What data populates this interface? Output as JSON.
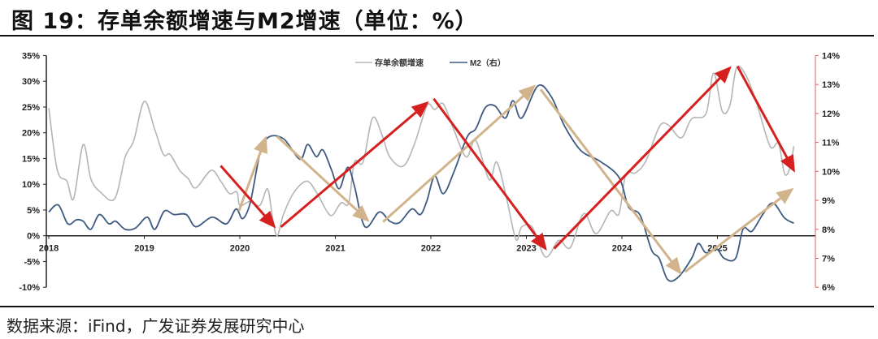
{
  "title": "图 19：存单余额增速与M2增速（单位：%）",
  "footer": "数据来源：iFind，广发证券发展研究中心",
  "colors": {
    "deposit": "#b5b5b5",
    "m2": "#3d5a80",
    "red_arrow": "#d62020",
    "tan_arrow": "#d2b48c",
    "right_axis": "#e06060"
  },
  "chart_data": {
    "type": "line",
    "title": "存单余额增速与M2增速（单位：%）",
    "legend_position": "top-center",
    "x_ticks": [
      "2018",
      "2019",
      "2020",
      "2021",
      "2022",
      "2023",
      "2024",
      "2025"
    ],
    "y_left": {
      "ticks": [
        "35%",
        "30%",
        "25%",
        "20%",
        "15%",
        "10%",
        "5%",
        "0%",
        "-5%",
        "-10%"
      ],
      "range": [
        -10,
        35
      ]
    },
    "y_right": {
      "ticks": [
        "14%",
        "13%",
        "12%",
        "11%",
        "10%",
        "9%",
        "8%",
        "7%",
        "6%"
      ],
      "range": [
        6,
        14
      ]
    },
    "series": [
      {
        "name": "存单余额增速",
        "axis": "left",
        "points": [
          [
            2018.0,
            24.8
          ],
          [
            2018.09,
            12.7
          ],
          [
            2018.19,
            10.6
          ],
          [
            2018.26,
            7.2
          ],
          [
            2018.36,
            17.7
          ],
          [
            2018.44,
            11.1
          ],
          [
            2018.54,
            8.5
          ],
          [
            2018.69,
            7.2
          ],
          [
            2018.8,
            15.3
          ],
          [
            2018.89,
            18.5
          ],
          [
            2019.0,
            26.1
          ],
          [
            2019.11,
            20.6
          ],
          [
            2019.2,
            15.8
          ],
          [
            2019.27,
            15.8
          ],
          [
            2019.37,
            12.7
          ],
          [
            2019.46,
            11.1
          ],
          [
            2019.54,
            9.3
          ],
          [
            2019.7,
            12.7
          ],
          [
            2019.8,
            10.6
          ],
          [
            2019.89,
            8.2
          ],
          [
            2019.97,
            8.5
          ],
          [
            2020.0,
            5.9
          ],
          [
            2020.11,
            6.7
          ],
          [
            2020.21,
            5.9
          ],
          [
            2020.29,
            9.1
          ],
          [
            2020.34,
            3.8
          ],
          [
            2020.39,
            0
          ],
          [
            2020.46,
            4.3
          ],
          [
            2020.57,
            8.5
          ],
          [
            2020.7,
            10.6
          ],
          [
            2020.8,
            8.5
          ],
          [
            2020.91,
            4.8
          ],
          [
            2020.97,
            4.0
          ],
          [
            2021.06,
            6.4
          ],
          [
            2021.14,
            6.4
          ],
          [
            2021.2,
            14.3
          ],
          [
            2021.29,
            14.3
          ],
          [
            2021.39,
            22.9
          ],
          [
            2021.49,
            19.5
          ],
          [
            2021.57,
            15.3
          ],
          [
            2021.71,
            13.5
          ],
          [
            2021.83,
            17.9
          ],
          [
            2021.96,
            25.3
          ],
          [
            2022.04,
            24.5
          ],
          [
            2022.13,
            25.6
          ],
          [
            2022.24,
            20.6
          ],
          [
            2022.37,
            15.3
          ],
          [
            2022.47,
            18.5
          ],
          [
            2022.61,
            10.9
          ],
          [
            2022.69,
            14.3
          ],
          [
            2022.79,
            7.5
          ],
          [
            2022.89,
            -0.7
          ],
          [
            2022.95,
            1.7
          ],
          [
            2023.06,
            1.7
          ],
          [
            2023.2,
            -4.1
          ],
          [
            2023.34,
            -0.9
          ],
          [
            2023.46,
            -2.3
          ],
          [
            2023.6,
            4.3
          ],
          [
            2023.73,
            0.4
          ],
          [
            2023.88,
            4.8
          ],
          [
            2023.97,
            4.3
          ],
          [
            2024.04,
            11.9
          ],
          [
            2024.14,
            12.2
          ],
          [
            2024.25,
            14.5
          ],
          [
            2024.39,
            21.1
          ],
          [
            2024.48,
            21.6
          ],
          [
            2024.62,
            19.0
          ],
          [
            2024.73,
            22.7
          ],
          [
            2024.88,
            23.7
          ],
          [
            2024.96,
            31.6
          ],
          [
            2025.05,
            24.2
          ],
          [
            2025.13,
            25.3
          ],
          [
            2025.2,
            32.6
          ],
          [
            2025.3,
            31.1
          ],
          [
            2025.41,
            25.8
          ],
          [
            2025.55,
            17.4
          ],
          [
            2025.64,
            17.9
          ],
          [
            2025.7,
            12.2
          ],
          [
            2025.75,
            12.7
          ],
          [
            2025.8,
            17.4
          ]
        ]
      },
      {
        "name": "M2（右）",
        "axis": "right",
        "points": [
          [
            2018.0,
            8.6
          ],
          [
            2018.1,
            8.84
          ],
          [
            2018.2,
            8.19
          ],
          [
            2018.29,
            8.33
          ],
          [
            2018.36,
            8.28
          ],
          [
            2018.44,
            8.0
          ],
          [
            2018.53,
            8.51
          ],
          [
            2018.63,
            8.19
          ],
          [
            2018.7,
            8.28
          ],
          [
            2018.8,
            8.0
          ],
          [
            2018.91,
            8.05
          ],
          [
            2019.03,
            8.42
          ],
          [
            2019.11,
            8.0
          ],
          [
            2019.21,
            8.63
          ],
          [
            2019.31,
            8.51
          ],
          [
            2019.44,
            8.51
          ],
          [
            2019.54,
            8.09
          ],
          [
            2019.71,
            8.42
          ],
          [
            2019.86,
            8.19
          ],
          [
            2019.96,
            8.7
          ],
          [
            2020.03,
            8.37
          ],
          [
            2020.11,
            8.93
          ],
          [
            2020.21,
            10.6
          ],
          [
            2020.3,
            11.18
          ],
          [
            2020.46,
            11.12
          ],
          [
            2020.63,
            10.42
          ],
          [
            2020.71,
            10.93
          ],
          [
            2020.8,
            10.51
          ],
          [
            2020.87,
            10.74
          ],
          [
            2020.96,
            10.05
          ],
          [
            2021.04,
            9.4
          ],
          [
            2021.13,
            10.14
          ],
          [
            2021.2,
            9.49
          ],
          [
            2021.31,
            8.09
          ],
          [
            2021.46,
            8.6
          ],
          [
            2021.57,
            8.28
          ],
          [
            2021.67,
            8.23
          ],
          [
            2021.8,
            8.7
          ],
          [
            2021.89,
            8.51
          ],
          [
            2021.96,
            9.0
          ],
          [
            2022.04,
            9.84
          ],
          [
            2022.13,
            9.23
          ],
          [
            2022.24,
            9.97
          ],
          [
            2022.38,
            11.19
          ],
          [
            2022.47,
            11.47
          ],
          [
            2022.57,
            12.2
          ],
          [
            2022.67,
            12.26
          ],
          [
            2022.78,
            11.84
          ],
          [
            2022.86,
            12.44
          ],
          [
            2022.95,
            11.84
          ],
          [
            2023.12,
            12.95
          ],
          [
            2023.26,
            12.58
          ],
          [
            2023.4,
            11.56
          ],
          [
            2023.57,
            10.72
          ],
          [
            2023.77,
            10.35
          ],
          [
            2023.97,
            9.79
          ],
          [
            2024.07,
            8.77
          ],
          [
            2024.19,
            8.49
          ],
          [
            2024.31,
            7.29
          ],
          [
            2024.39,
            7.0
          ],
          [
            2024.48,
            6.26
          ],
          [
            2024.59,
            6.35
          ],
          [
            2024.73,
            7.0
          ],
          [
            2024.8,
            7.51
          ],
          [
            2024.88,
            7.19
          ],
          [
            2024.99,
            7.33
          ],
          [
            2025.07,
            7.0
          ],
          [
            2025.19,
            7.0
          ],
          [
            2025.27,
            8.02
          ],
          [
            2025.36,
            7.93
          ],
          [
            2025.47,
            8.49
          ],
          [
            2025.58,
            8.91
          ],
          [
            2025.7,
            8.4
          ],
          [
            2025.8,
            8.21
          ]
        ]
      }
    ],
    "annotations": {
      "red_arrows": [
        [
          [
            2019.8,
            13.6
          ],
          [
            2020.36,
            1.8
          ]
        ],
        [
          [
            2020.43,
            1.7
          ],
          [
            2021.96,
            25.8
          ]
        ],
        [
          [
            2022.03,
            26.6
          ],
          [
            2023.2,
            -2.5
          ]
        ],
        [
          [
            2023.29,
            -2.5
          ],
          [
            2025.13,
            32.6
          ]
        ],
        [
          [
            2025.21,
            32.9
          ],
          [
            2025.8,
            12.7
          ]
        ]
      ],
      "tan_arrows": [
        [
          [
            2019.99,
            4.8
          ],
          [
            2020.27,
            19.0
          ]
        ],
        [
          [
            2020.39,
            19.3
          ],
          [
            2021.34,
            3.0
          ]
        ],
        [
          [
            2021.5,
            2.7
          ],
          [
            2023.08,
            29.0
          ]
        ],
        [
          [
            2023.15,
            28.4
          ],
          [
            2024.61,
            -7.2
          ]
        ],
        [
          [
            2024.66,
            -7.0
          ],
          [
            2025.78,
            9.0
          ]
        ]
      ]
    }
  }
}
